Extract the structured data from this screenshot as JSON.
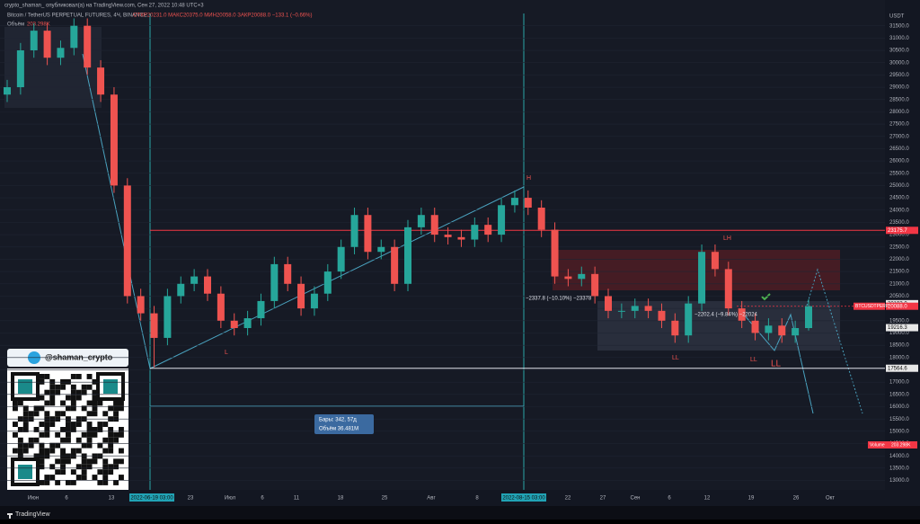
{
  "header": {
    "publisher": "crypto_shaman_ опубликовал(а) на TradingView.com, Сен 27, 2022 10:48 UTC+3",
    "symbol": "Bitcoin / TetherUS PERPETUAL FUTURES, 4Ч, BINANCE",
    "ohlc": "ОТКР20231.0 МАКС20375.0 МИН20058.0 ЗАКР20088.0 −133.1 (−0.66%)",
    "volume_name": "Объём",
    "volume_value": "203.298K"
  },
  "chart_data": {
    "type": "candlestick",
    "currency": "USDT",
    "open": [
      28700,
      29000,
      30500,
      31300,
      30200,
      30600,
      31500,
      29800,
      28700,
      25000,
      20500,
      19800,
      18800,
      20500,
      21000,
      21300,
      20600,
      19500,
      19200,
      19600,
      20300,
      21800,
      21000,
      20000,
      20600,
      21500,
      22500,
      23800,
      22300,
      22500,
      21000,
      23300,
      23800,
      23000,
      22900,
      22800,
      23400,
      23000,
      24200,
      24500,
      24100,
      23200,
      21300,
      21200,
      21400,
      20500,
      19900,
      19900,
      20100,
      19900,
      19500,
      18900,
      20200,
      22300,
      21600,
      20000,
      19500,
      19000,
      19300,
      18900,
      19200
    ],
    "high": [
      29300,
      30800,
      31600,
      31600,
      30900,
      31800,
      31800,
      30100,
      29000,
      25300,
      20800,
      20100,
      20800,
      21300,
      21600,
      21600,
      20900,
      19800,
      19900,
      20600,
      22100,
      22100,
      21300,
      20900,
      21800,
      22800,
      24100,
      24100,
      22800,
      22800,
      23600,
      24100,
      24100,
      23300,
      23200,
      23700,
      23700,
      24500,
      24800,
      24800,
      24400,
      23500,
      21600,
      21700,
      21700,
      20800,
      20200,
      20400,
      20400,
      20200,
      19800,
      20500,
      22600,
      22600,
      21900,
      20300,
      19800,
      19600,
      19600,
      19500,
      20375
    ],
    "low": [
      28400,
      28700,
      30200,
      29900,
      29900,
      30300,
      29500,
      28400,
      24700,
      20200,
      19500,
      17600,
      18500,
      20200,
      20700,
      20300,
      19200,
      18900,
      18900,
      19300,
      20000,
      20700,
      19700,
      19700,
      20300,
      21200,
      22200,
      22000,
      22000,
      20700,
      20700,
      23000,
      22700,
      22600,
      22500,
      22500,
      22700,
      22700,
      23900,
      23800,
      22900,
      21000,
      20900,
      20900,
      20200,
      19600,
      19600,
      19600,
      19600,
      19200,
      18600,
      18600,
      19900,
      21300,
      19700,
      19200,
      18700,
      18700,
      18600,
      18600,
      19100
    ],
    "close": [
      29000,
      30500,
      31300,
      30200,
      30600,
      31500,
      29800,
      28700,
      25000,
      20500,
      19800,
      18800,
      20500,
      21000,
      21300,
      20600,
      19500,
      19200,
      19600,
      20300,
      21800,
      21000,
      20000,
      20600,
      21500,
      22500,
      23800,
      22300,
      22500,
      21000,
      23300,
      23800,
      23000,
      22900,
      22800,
      23400,
      23000,
      24200,
      24500,
      24100,
      23200,
      21300,
      21200,
      21400,
      20500,
      19900,
      19900,
      20100,
      19900,
      19500,
      18900,
      20200,
      22300,
      21600,
      20000,
      19500,
      19000,
      19300,
      18900,
      19200,
      20088
    ],
    "up_color": "#26a69a",
    "down_color": "#ef5350",
    "ylim": [
      12800,
      32000
    ],
    "yticks": [
      {
        "value": 13000,
        "label": "13000.0"
      },
      {
        "value": 13500,
        "label": "13500.0"
      },
      {
        "value": 14000,
        "label": "14000.0"
      },
      {
        "value": 14500,
        "label": "14500.0"
      },
      {
        "value": 15000,
        "label": "15000.0"
      },
      {
        "value": 15500,
        "label": "15500.0"
      },
      {
        "value": 16000,
        "label": "16000.0"
      },
      {
        "value": 16500,
        "label": "16500.0"
      },
      {
        "value": 17000,
        "label": "17000.0"
      },
      {
        "value": 17500,
        "label": "17500.0"
      },
      {
        "value": 18000,
        "label": "18000.0"
      },
      {
        "value": 18500,
        "label": "18500.0"
      },
      {
        "value": 19000,
        "label": "19000.0"
      },
      {
        "value": 19500,
        "label": "19500.0"
      },
      {
        "value": 20000,
        "label": "20000.0"
      },
      {
        "value": 20500,
        "label": "20500.0"
      },
      {
        "value": 21000,
        "label": "21000.0"
      },
      {
        "value": 21500,
        "label": "21500.0"
      },
      {
        "value": 22000,
        "label": "22000.0"
      },
      {
        "value": 22500,
        "label": "22500.0"
      },
      {
        "value": 23000,
        "label": "23000.0"
      },
      {
        "value": 23500,
        "label": "23500.0"
      },
      {
        "value": 24000,
        "label": "24000.0"
      },
      {
        "value": 24500,
        "label": "24500.0"
      },
      {
        "value": 25000,
        "label": "25000.0"
      },
      {
        "value": 25500,
        "label": "25500.0"
      },
      {
        "value": 26000,
        "label": "26000.0"
      },
      {
        "value": 26500,
        "label": "26500.0"
      },
      {
        "value": 27000,
        "label": "27000.0"
      },
      {
        "value": 27500,
        "label": "27500.0"
      },
      {
        "value": 28000,
        "label": "28000.0"
      },
      {
        "value": 28500,
        "label": "28500.0"
      },
      {
        "value": 29000,
        "label": "29000.0"
      },
      {
        "value": 29500,
        "label": "29500.0"
      },
      {
        "value": 30000,
        "label": "30000.0"
      },
      {
        "value": 30500,
        "label": "30500.0"
      },
      {
        "value": 31000,
        "label": "31000.0"
      },
      {
        "value": 31500,
        "label": "31500.0"
      }
    ],
    "price_labels": [
      {
        "value": 23175.7,
        "label": "23175.7"
      },
      {
        "value": 20193,
        "label": "20193.0"
      },
      {
        "value": 20088,
        "label": "20088.0"
      },
      {
        "value": 19216.3,
        "label": "19216.3"
      },
      {
        "value": 17564.6,
        "label": "17564.6"
      }
    ],
    "price_label_colors": [
      "#f23645",
      "#ffffff",
      "#f23645",
      "#ffffff",
      "#ffffff"
    ],
    "symbol_tag": "BTCUSDTPERP",
    "x_labels": [
      "Июн",
      "6",
      "13",
      "2022-06-19 03:00",
      "23",
      "Июл",
      "6",
      "11",
      "18",
      "25",
      "Авг",
      "8",
      "2022-08-15 03:00",
      "22",
      "27",
      "Сен",
      "6",
      "12",
      "19",
      "26",
      "Окт"
    ],
    "annotations": [
      "H",
      "LH",
      "L",
      "LL",
      "LL",
      "LL",
      "−2337.8 (−10.10%) −23378",
      "−2202.4 (−9.84%) −22024"
    ],
    "range_box": [
      "Бары: 342, 57д",
      "Объём 36.481M"
    ],
    "volume_tag": "Volume",
    "volume_value": "203.298K"
  },
  "badge": "@shaman_crypto",
  "footer": "TradingView"
}
